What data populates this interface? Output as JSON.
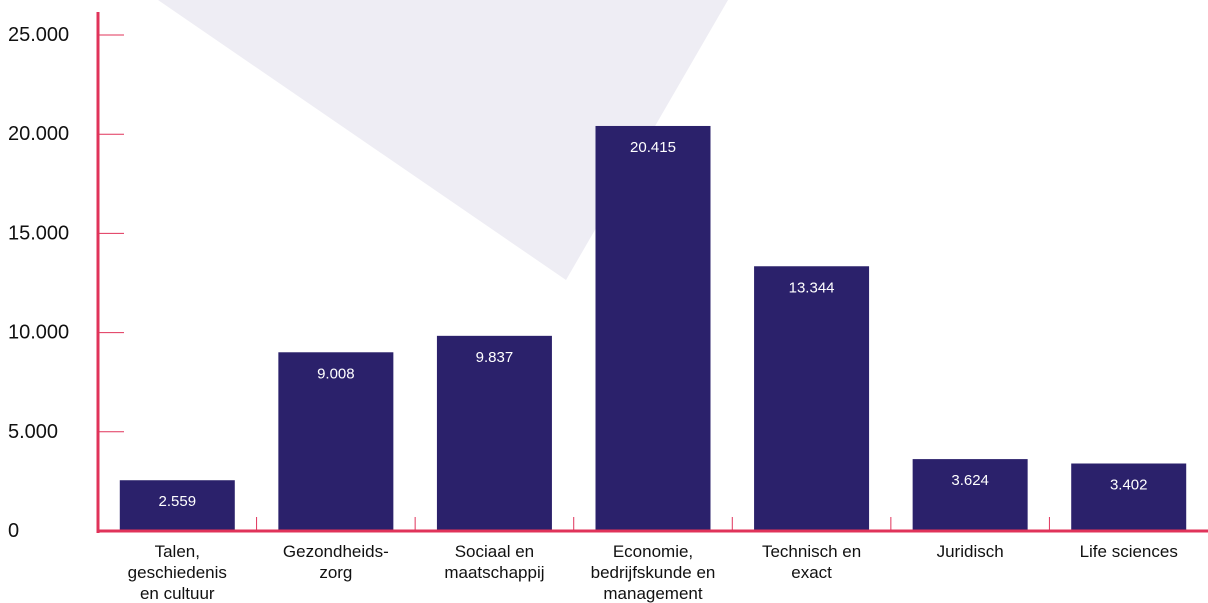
{
  "chart_data": {
    "type": "bar",
    "categories": [
      [
        "Talen,",
        "geschiedenis",
        "en cultuur"
      ],
      [
        "Gezondheids-",
        "zorg"
      ],
      [
        "Sociaal en",
        "maatschappij"
      ],
      [
        "Economie,",
        "bedrijfskunde en",
        "management"
      ],
      [
        "Technisch en",
        "exact"
      ],
      [
        "Juridisch"
      ],
      [
        "Life sciences"
      ]
    ],
    "values": [
      2559,
      9008,
      9837,
      20415,
      13344,
      3624,
      3402
    ],
    "value_labels": [
      "2.559",
      "9.008",
      "9.837",
      "20.415",
      "13.344",
      "3.624",
      "3.402"
    ],
    "yticks": [
      0,
      5000,
      10000,
      15000,
      20000,
      25000
    ],
    "ytick_labels": [
      "0",
      "5.000",
      "10.000",
      "15.000",
      "20.000",
      "25.000"
    ],
    "ylim": [
      0,
      25000
    ],
    "grid": false,
    "colors": {
      "bar": "#2b216b",
      "axis": "#e0335a",
      "background_shape": "#eeedf4",
      "text": "#111111",
      "value_label": "#ffffff"
    }
  }
}
